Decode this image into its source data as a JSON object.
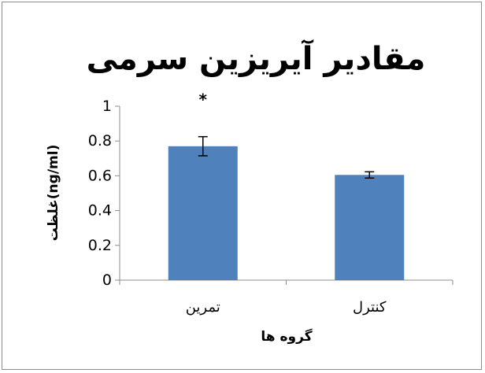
{
  "chart_data": {
    "type": "bar",
    "title": "مقادیر آیریزین سرمی",
    "xlabel": "گروه ها",
    "ylabel": "غلظت(ng/ml)",
    "categories": [
      "تمرین",
      "کنترل"
    ],
    "values": [
      0.77,
      0.605
    ],
    "error": [
      0.055,
      0.018
    ],
    "annotations": [
      {
        "category": "تمرین",
        "text": "*"
      }
    ],
    "y_ticks": [
      "0",
      "0.2",
      "0.4",
      "0.6",
      "0.8",
      "1"
    ],
    "ylim": [
      0,
      1
    ],
    "grid": false,
    "legend": "none",
    "bar_color": "#4f81bd",
    "error_color": "#000000"
  }
}
